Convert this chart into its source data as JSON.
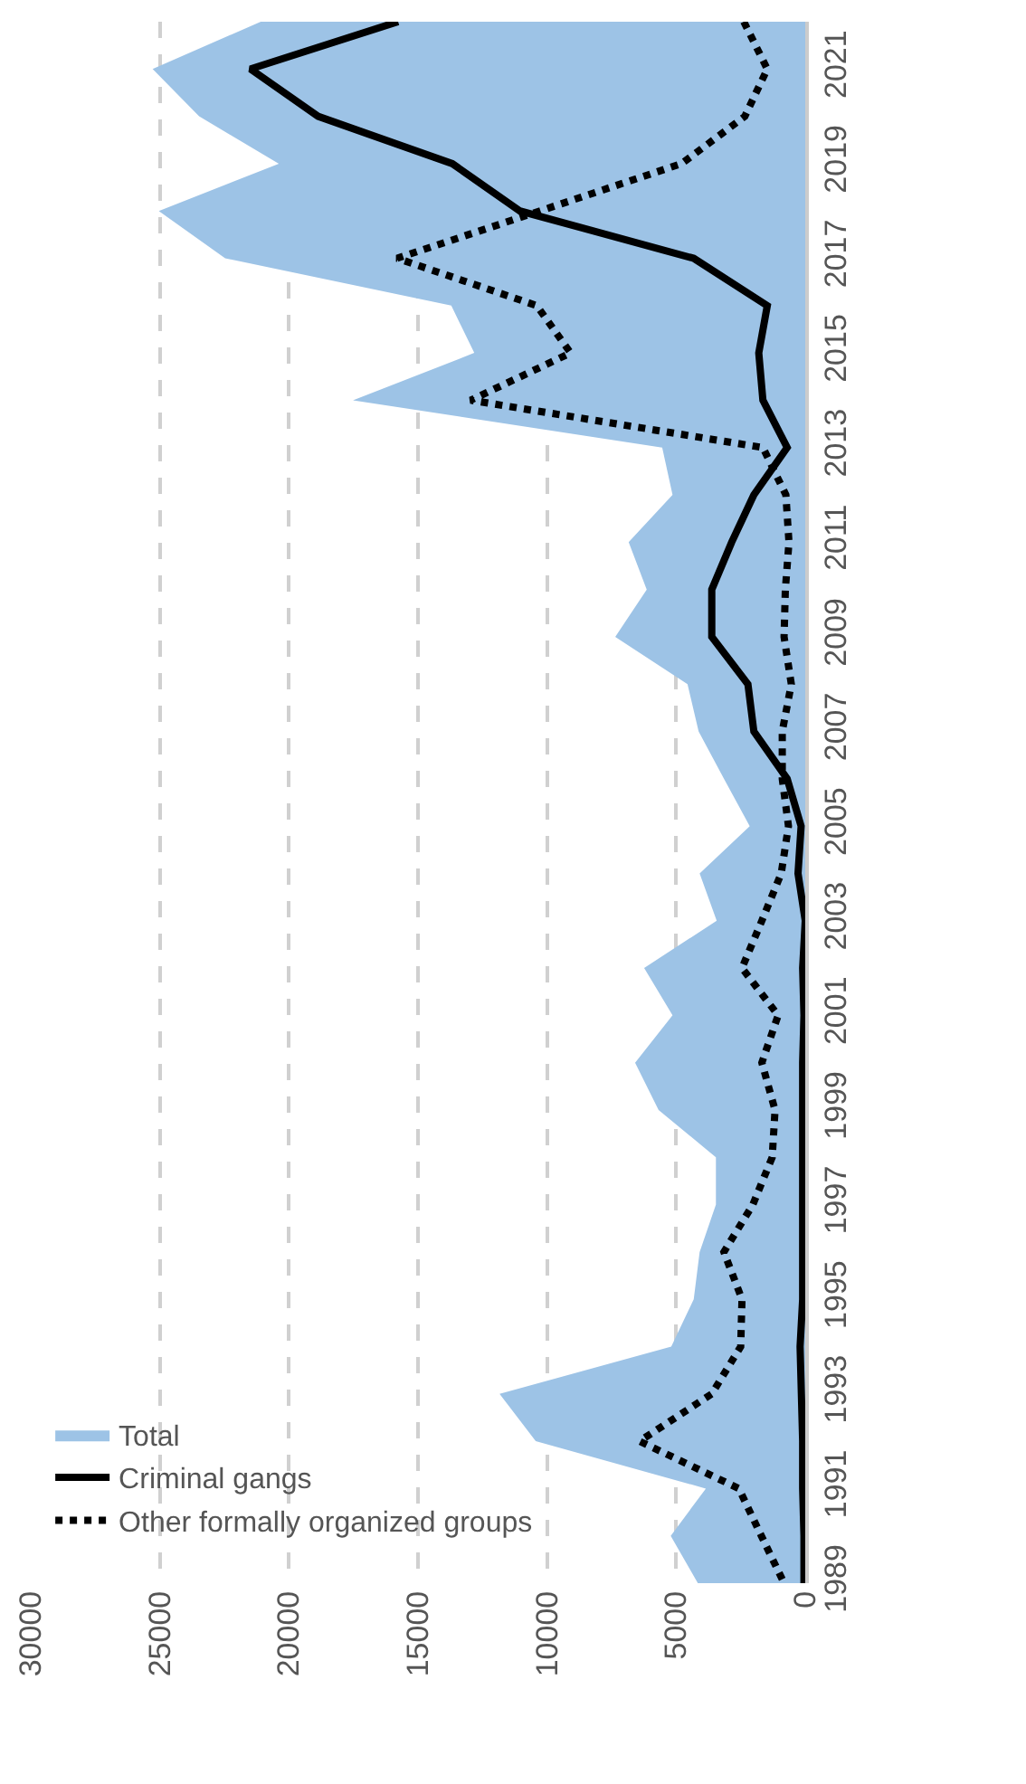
{
  "chart_data": {
    "type": "line",
    "orientation": "horizontal",
    "categories": [
      null,
      "2021",
      null,
      "2019",
      null,
      "2017",
      null,
      "2015",
      null,
      "2013",
      null,
      "2011",
      null,
      "2009",
      null,
      "2007",
      null,
      "2005",
      null,
      "2003",
      null,
      "2001",
      null,
      "1999",
      null,
      "1997",
      null,
      "1995",
      null,
      "1993",
      null,
      "1991",
      null,
      "1989"
    ],
    "xlim": [
      30000,
      0
    ],
    "xticks": [
      30000,
      25000,
      20000,
      15000,
      10000,
      5000,
      0
    ],
    "grid": "x",
    "legend": "bottom left",
    "series": [
      {
        "name": "Total",
        "type": "area",
        "color": "#9dc3e6",
        "values": [
          21090,
          25280,
          23480,
          20390,
          25040,
          22470,
          13710,
          12820,
          17520,
          5540,
          5140,
          6840,
          6140,
          7360,
          4560,
          4130,
          3150,
          2150,
          4090,
          3430,
          6240,
          5140,
          6590,
          5680,
          3460,
          3460,
          4090,
          4320,
          5190,
          11840,
          10440,
          3850,
          5210,
          4160
        ]
      },
      {
        "name": "Criminal gangs",
        "color": "#000000",
        "line_style": "solid",
        "values": [
          15770,
          21490,
          18870,
          13670,
          11050,
          4320,
          1470,
          1800,
          1640,
          700,
          1990,
          2850,
          3620,
          3620,
          2220,
          1990,
          700,
          160,
          280,
          0,
          100,
          50,
          100,
          100,
          100,
          100,
          100,
          100,
          200,
          150,
          100,
          100,
          50,
          50
        ]
      },
      {
        "name": "Other formally organized groups",
        "color": "#000000",
        "line_style": "dotted",
        "values": [
          2380,
          1470,
          2340,
          4790,
          10280,
          15810,
          10400,
          9090,
          12960,
          1640,
          750,
          630,
          770,
          820,
          540,
          890,
          890,
          650,
          930,
          1680,
          2450,
          1050,
          1680,
          1170,
          1280,
          2030,
          3150,
          2450,
          2500,
          3620,
          6420,
          2570,
          1700,
          820
        ]
      }
    ]
  }
}
